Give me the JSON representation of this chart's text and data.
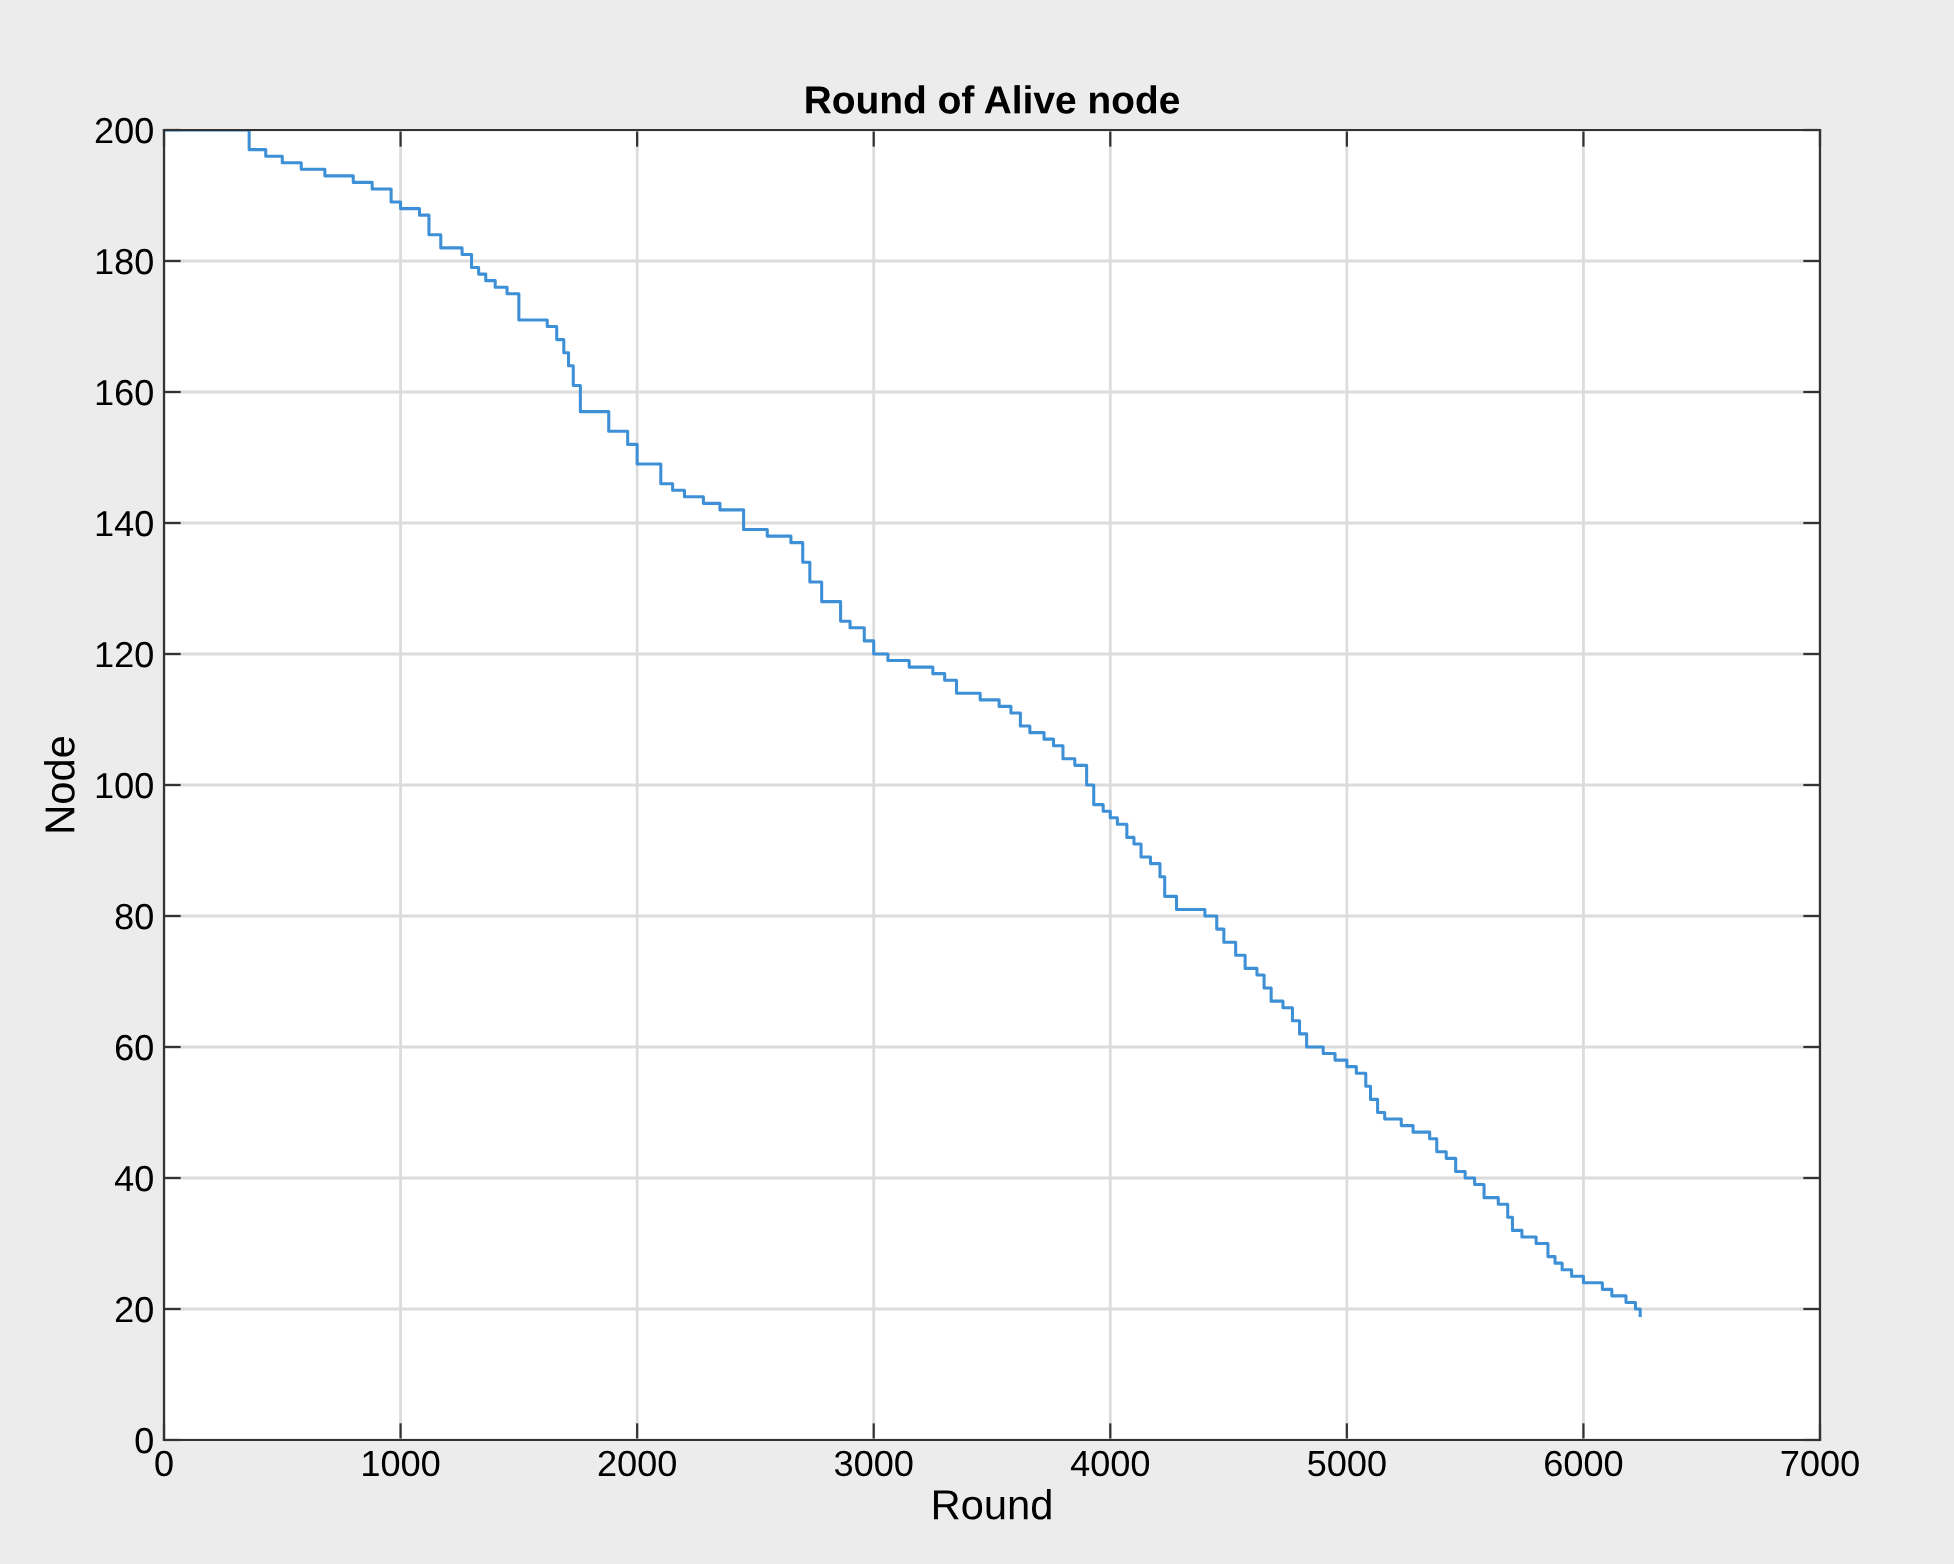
{
  "chart_data": {
    "type": "step",
    "title": "Round of Alive node",
    "xlabel": "Round",
    "ylabel": "Node",
    "xlim": [
      0,
      7000
    ],
    "xticks": [
      0,
      1000,
      2000,
      3000,
      4000,
      5000,
      6000,
      7000
    ],
    "ylim": [
      0,
      200
    ],
    "yticks": [
      0,
      20,
      40,
      60,
      80,
      100,
      120,
      140,
      160,
      180,
      200
    ],
    "grid": true,
    "series": [
      {
        "color": "#3d8fd6",
        "x": [
          0,
          360,
          430,
          500,
          580,
          680,
          800,
          880,
          960,
          1000,
          1080,
          1120,
          1170,
          1260,
          1300,
          1330,
          1360,
          1400,
          1450,
          1500,
          1620,
          1660,
          1690,
          1710,
          1730,
          1760,
          1880,
          1960,
          2000,
          2100,
          2150,
          2200,
          2280,
          2350,
          2450,
          2550,
          2650,
          2700,
          2730,
          2780,
          2860,
          2900,
          2960,
          3000,
          3060,
          3150,
          3250,
          3300,
          3350,
          3450,
          3530,
          3580,
          3620,
          3660,
          3720,
          3760,
          3800,
          3850,
          3900,
          3930,
          3970,
          4000,
          4030,
          4070,
          4100,
          4130,
          4170,
          4210,
          4230,
          4280,
          4400,
          4450,
          4480,
          4530,
          4570,
          4620,
          4650,
          4680,
          4730,
          4770,
          4800,
          4830,
          4900,
          4950,
          5000,
          5040,
          5080,
          5100,
          5130,
          5160,
          5230,
          5280,
          5350,
          5380,
          5420,
          5460,
          5500,
          5540,
          5580,
          5640,
          5680,
          5700,
          5740,
          5800,
          5850,
          5880,
          5910,
          5950,
          6000,
          6080,
          6120,
          6180,
          6220,
          6240
        ],
        "values": [
          200,
          197,
          196,
          195,
          194,
          193,
          192,
          191,
          189,
          188,
          187,
          184,
          182,
          181,
          179,
          178,
          177,
          176,
          175,
          171,
          170,
          168,
          166,
          164,
          161,
          157,
          154,
          152,
          149,
          146,
          145,
          144,
          143,
          142,
          139,
          138,
          137,
          134,
          131,
          128,
          125,
          124,
          122,
          120,
          119,
          118,
          117,
          116,
          114,
          113,
          112,
          111,
          109,
          108,
          107,
          106,
          104,
          103,
          100,
          97,
          96,
          95,
          94,
          92,
          91,
          89,
          88,
          86,
          83,
          81,
          80,
          78,
          76,
          74,
          72,
          71,
          69,
          67,
          66,
          64,
          62,
          60,
          59,
          58,
          57,
          56,
          54,
          52,
          50,
          49,
          48,
          47,
          46,
          44,
          43,
          41,
          40,
          39,
          37,
          36,
          34,
          32,
          31,
          30,
          28,
          27,
          26,
          25,
          24,
          23,
          22,
          21,
          20,
          19
        ]
      }
    ]
  }
}
